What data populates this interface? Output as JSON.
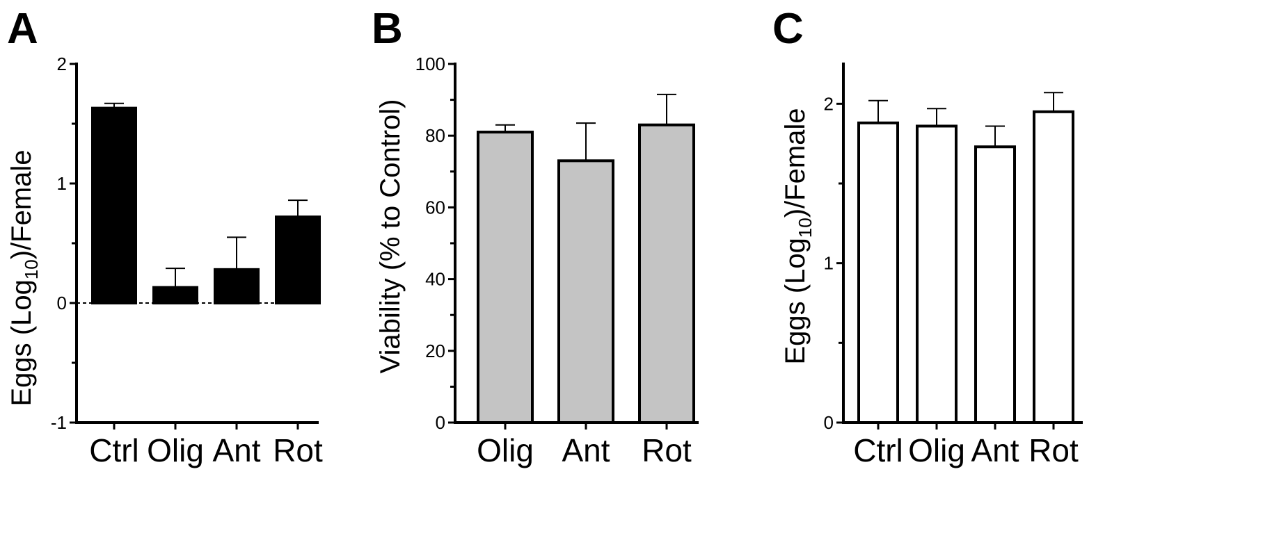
{
  "chart_data": [
    {
      "type": "bar",
      "panel": "A",
      "categories": [
        "Ctrl",
        "Olig",
        "Ant",
        "Rot"
      ],
      "values": [
        1.63,
        0.13,
        0.28,
        0.72
      ],
      "errors": [
        0.04,
        0.16,
        0.27,
        0.14
      ],
      "ylabel_main": "Eggs (Log",
      "ylabel_sub": "10",
      "ylabel_tail": ")/Female",
      "ylim": [
        -1,
        2
      ],
      "yticks": [
        -1,
        0,
        1,
        2
      ],
      "minor_ticks": [
        -0.5,
        0.5,
        1.5
      ],
      "reference_line": 0,
      "bar_color": "#000000"
    },
    {
      "type": "bar",
      "panel": "B",
      "categories": [
        "Olig",
        "Ant",
        "Rot"
      ],
      "values": [
        81,
        73,
        83
      ],
      "errors": [
        2,
        10.5,
        8.5
      ],
      "ylabel": "Viability (% to Control)",
      "ylim": [
        0,
        100
      ],
      "yticks": [
        0,
        20,
        40,
        60,
        80,
        100
      ],
      "minor_ticks": [
        10,
        30,
        50,
        70,
        90
      ],
      "bar_color": "#c4c4c4"
    },
    {
      "type": "bar",
      "panel": "C",
      "categories": [
        "Ctrl",
        "Olig",
        "Ant",
        "Rot"
      ],
      "values": [
        1.88,
        1.86,
        1.73,
        1.95
      ],
      "errors": [
        0.14,
        0.11,
        0.13,
        0.12
      ],
      "ylabel_main": "Eggs (Log",
      "ylabel_sub": "10",
      "ylabel_tail": ")/Female",
      "ylim": [
        0,
        2.25
      ],
      "yticks": [
        0,
        1,
        2
      ],
      "minor_ticks": [
        0.5,
        1.5
      ],
      "bar_color": "#ffffff"
    }
  ]
}
